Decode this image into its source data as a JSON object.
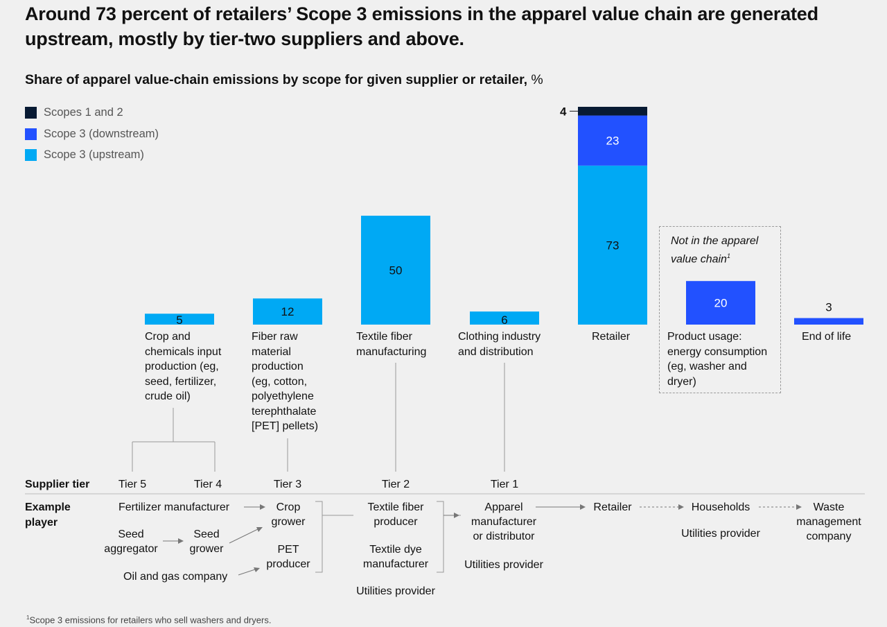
{
  "title": "Around 73 percent of retailers’ Scope 3 emissions in the apparel value chain are generated upstream, mostly by tier-two suppliers and above.",
  "subtitle": "Share of apparel value-chain emissions by scope for given supplier or retailer,",
  "subtitle_unit": "%",
  "colors": {
    "scopes_1_2": "#081a33",
    "scope3_downstream": "#2251ff",
    "scope3_upstream": "#00a9f4"
  },
  "legend": [
    {
      "label": "Scopes 1 and 2",
      "color": "#081a33"
    },
    {
      "label": "Scope 3 (downstream)",
      "color": "#2251ff"
    },
    {
      "label": "Scope 3 (upstream)",
      "color": "#00a9f4"
    }
  ],
  "chart_data": {
    "type": "bar",
    "stacked": true,
    "categories": [
      "Crop and chemicals input production (eg, seed, fertilizer, crude oil)",
      "Fiber raw material production (eg, cotton, polyethylene terephthalate [PET] pellets)",
      "Textile fiber manufacturing",
      "Clothing industry and distribution",
      "Retailer",
      "Product usage: energy consumption (eg, washer and dryer)",
      "End of life"
    ],
    "category_lines": [
      [
        "Crop and",
        "chemicals input",
        "production (eg,",
        "seed, fertilizer,",
        "crude oil)"
      ],
      [
        "Fiber raw",
        "material",
        "production",
        "(eg, cotton,",
        "polyethylene",
        "terephthalate",
        "[PET] pellets)"
      ],
      [
        "Textile fiber",
        "manufacturing"
      ],
      [
        "Clothing industry",
        "and distribution"
      ],
      [
        "Retailer"
      ],
      [
        "Product usage:",
        "energy consumption",
        "(eg, washer and",
        "dryer)"
      ],
      [
        "End of life"
      ]
    ],
    "series": [
      {
        "name": "Scope 3 (upstream)",
        "values": [
          5,
          12,
          50,
          6,
          73,
          null,
          null
        ]
      },
      {
        "name": "Scope 3 (downstream)",
        "values": [
          null,
          null,
          null,
          null,
          23,
          20,
          3
        ]
      },
      {
        "name": "Scopes 1 and 2",
        "values": [
          null,
          null,
          null,
          null,
          4,
          null,
          null
        ]
      }
    ],
    "ylim": [
      0,
      100
    ],
    "grid": false,
    "legend_position": "top-left",
    "annotation": "Not in the apparel value chain"
  },
  "annotation": {
    "text": "Not in the apparel value chain",
    "lines": [
      "Not in the apparel",
      "value chain"
    ],
    "marker": "1"
  },
  "supply": {
    "supplier_tier_label": "Supplier tier",
    "example_player_label": [
      "Example",
      "player"
    ],
    "tiers": [
      "Tier 5",
      "Tier 4",
      "Tier 3",
      "Tier 2",
      "Tier 1"
    ],
    "players": {
      "fertilizer": "Fertilizer manufacturer",
      "seed_aggregator": [
        "Seed",
        "aggregator"
      ],
      "seed_grower": [
        "Seed",
        "grower"
      ],
      "oil_gas": "Oil and gas company",
      "crop_grower": [
        "Crop",
        "grower"
      ],
      "pet_producer": [
        "PET",
        "producer"
      ],
      "textile_fiber_producer": [
        "Textile fiber",
        "producer"
      ],
      "textile_dye": [
        "Textile dye",
        "manufacturer"
      ],
      "utilities_tier2": "Utilities provider",
      "apparel": [
        "Apparel",
        "manufacturer",
        "or distributor"
      ],
      "utilities_tier1": "Utilities provider",
      "retailer": "Retailer",
      "households": "Households",
      "utilities_households": "Utilities provider",
      "waste": [
        "Waste",
        "management",
        "company"
      ]
    }
  },
  "footnote": "Scope 3 emissions for retailers who sell washers and dryers.",
  "footnote_marker": "1"
}
